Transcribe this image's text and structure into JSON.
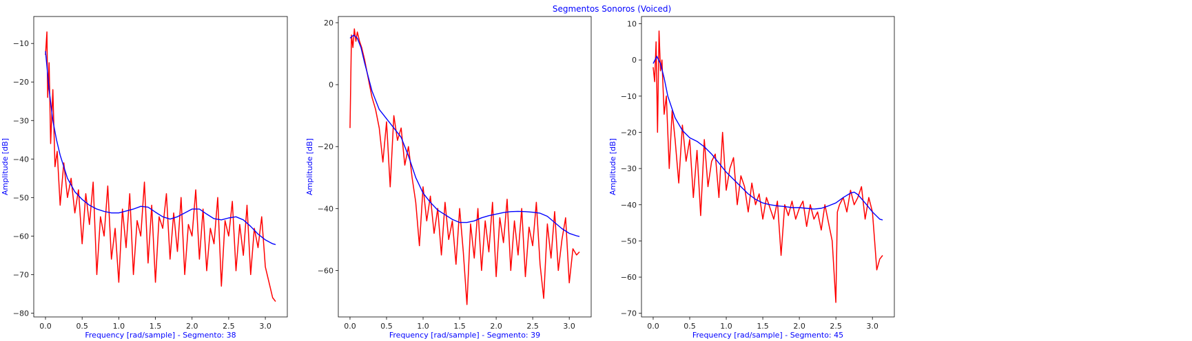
{
  "figure": {
    "suptitle": "Segmentos Sonoros (Voiced)",
    "label_color": "#0000ff",
    "spectrum_color": "#ff0000",
    "envelope_color": "#0000ff"
  },
  "chart_data": [
    {
      "type": "line",
      "xlabel": "Frequency [rad/sample] - Segmento: 38",
      "ylabel": "Amplitude [dB]",
      "xlim": [
        -0.16,
        3.3
      ],
      "ylim": [
        -81,
        -3
      ],
      "xticks": [
        0.0,
        0.5,
        1.0,
        1.5,
        2.0,
        2.5,
        3.0
      ],
      "yticks": [
        -80,
        -70,
        -60,
        -50,
        -40,
        -30,
        -20,
        -10
      ],
      "series": [
        {
          "role": "spectrum",
          "color": "#ff0000",
          "x": [
            0.0,
            0.02,
            0.03,
            0.05,
            0.07,
            0.1,
            0.13,
            0.16,
            0.2,
            0.25,
            0.3,
            0.35,
            0.4,
            0.45,
            0.5,
            0.55,
            0.6,
            0.65,
            0.7,
            0.75,
            0.8,
            0.85,
            0.9,
            0.95,
            1.0,
            1.05,
            1.1,
            1.15,
            1.2,
            1.25,
            1.3,
            1.35,
            1.4,
            1.45,
            1.5,
            1.55,
            1.6,
            1.65,
            1.7,
            1.75,
            1.8,
            1.85,
            1.9,
            1.95,
            2.0,
            2.05,
            2.1,
            2.15,
            2.2,
            2.25,
            2.3,
            2.35,
            2.4,
            2.45,
            2.5,
            2.55,
            2.6,
            2.65,
            2.7,
            2.75,
            2.8,
            2.85,
            2.9,
            2.95,
            3.0,
            3.05,
            3.1,
            3.14
          ],
          "y": [
            -13,
            -7,
            -24,
            -15,
            -36,
            -22,
            -42,
            -38,
            -52,
            -41,
            -50,
            -45,
            -54,
            -48,
            -62,
            -49,
            -57,
            -46,
            -70,
            -55,
            -60,
            -47,
            -66,
            -58,
            -72,
            -53,
            -63,
            -49,
            -70,
            -56,
            -60,
            -46,
            -67,
            -52,
            -72,
            -55,
            -58,
            -49,
            -66,
            -54,
            -64,
            -50,
            -70,
            -57,
            -60,
            -48,
            -66,
            -53,
            -69,
            -58,
            -62,
            -50,
            -73,
            -56,
            -60,
            -51,
            -69,
            -57,
            -65,
            -52,
            -70,
            -58,
            -63,
            -55,
            -68,
            -72,
            -76,
            -77
          ]
        },
        {
          "role": "envelope",
          "color": "#0000ff",
          "x": [
            0.0,
            0.05,
            0.1,
            0.15,
            0.2,
            0.3,
            0.4,
            0.5,
            0.6,
            0.7,
            0.8,
            0.9,
            1.0,
            1.1,
            1.2,
            1.3,
            1.4,
            1.5,
            1.6,
            1.7,
            1.8,
            1.9,
            2.0,
            2.1,
            2.2,
            2.3,
            2.4,
            2.5,
            2.6,
            2.7,
            2.8,
            2.9,
            3.0,
            3.1,
            3.14
          ],
          "y": [
            -12,
            -22,
            -30,
            -35,
            -39,
            -45,
            -48.5,
            -50.5,
            -52,
            -53,
            -53.6,
            -54,
            -54,
            -53.5,
            -53,
            -52.3,
            -52.5,
            -53.8,
            -55,
            -55.6,
            -55,
            -54,
            -53,
            -53,
            -54.3,
            -55.5,
            -55.8,
            -55.3,
            -55,
            -55.8,
            -57.5,
            -59.5,
            -61,
            -62,
            -62.2
          ]
        }
      ]
    },
    {
      "type": "line",
      "xlabel": "Frequency [rad/sample] - Segmento: 39",
      "ylabel": "Amplitude [dB]",
      "xlim": [
        -0.16,
        3.3
      ],
      "ylim": [
        -75,
        22
      ],
      "xticks": [
        0.0,
        0.5,
        1.0,
        1.5,
        2.0,
        2.5,
        3.0
      ],
      "yticks": [
        -60,
        -40,
        -20,
        0,
        20
      ],
      "series": [
        {
          "role": "spectrum",
          "color": "#ff0000",
          "x": [
            0.0,
            0.02,
            0.04,
            0.06,
            0.08,
            0.1,
            0.13,
            0.16,
            0.2,
            0.25,
            0.3,
            0.35,
            0.4,
            0.45,
            0.5,
            0.55,
            0.6,
            0.65,
            0.7,
            0.75,
            0.8,
            0.85,
            0.9,
            0.95,
            1.0,
            1.05,
            1.1,
            1.15,
            1.2,
            1.25,
            1.3,
            1.35,
            1.4,
            1.45,
            1.5,
            1.55,
            1.6,
            1.65,
            1.7,
            1.75,
            1.8,
            1.85,
            1.9,
            1.95,
            2.0,
            2.05,
            2.1,
            2.15,
            2.2,
            2.25,
            2.3,
            2.35,
            2.4,
            2.45,
            2.5,
            2.55,
            2.6,
            2.65,
            2.7,
            2.75,
            2.8,
            2.85,
            2.9,
            2.95,
            3.0,
            3.05,
            3.1,
            3.14
          ],
          "y": [
            -14,
            16,
            12,
            18,
            14,
            17,
            14,
            12,
            8,
            2,
            -4,
            -8,
            -14,
            -25,
            -12,
            -33,
            -10,
            -18,
            -14,
            -26,
            -20,
            -30,
            -38,
            -52,
            -33,
            -44,
            -36,
            -48,
            -40,
            -55,
            -38,
            -50,
            -44,
            -58,
            -40,
            -54,
            -71,
            -45,
            -56,
            -40,
            -60,
            -44,
            -54,
            -38,
            -62,
            -43,
            -51,
            -37,
            -60,
            -44,
            -55,
            -40,
            -62,
            -46,
            -52,
            -38,
            -58,
            -69,
            -45,
            -56,
            -41,
            -60,
            -50,
            -43,
            -64,
            -53,
            -55,
            -54
          ]
        },
        {
          "role": "envelope",
          "color": "#0000ff",
          "x": [
            0.0,
            0.05,
            0.1,
            0.15,
            0.2,
            0.3,
            0.4,
            0.5,
            0.6,
            0.7,
            0.8,
            0.9,
            1.0,
            1.1,
            1.2,
            1.3,
            1.4,
            1.5,
            1.6,
            1.7,
            1.8,
            1.9,
            2.0,
            2.1,
            2.2,
            2.3,
            2.4,
            2.5,
            2.6,
            2.7,
            2.8,
            2.9,
            3.0,
            3.1,
            3.14
          ],
          "y": [
            15,
            16,
            15,
            12,
            7,
            -2,
            -8,
            -11,
            -14,
            -17,
            -23,
            -30,
            -35,
            -38,
            -40.5,
            -42,
            -43.5,
            -44.5,
            -44.5,
            -44,
            -43,
            -42.3,
            -41.8,
            -41.3,
            -41,
            -40.9,
            -41,
            -41.2,
            -41.5,
            -42.5,
            -44.5,
            -46.5,
            -48,
            -48.8,
            -49
          ]
        }
      ]
    },
    {
      "type": "line",
      "xlabel": "Frequency [rad/sample] - Segmento: 45",
      "ylabel": "Amplitude [dB]",
      "xlim": [
        -0.16,
        3.3
      ],
      "ylim": [
        -71,
        12
      ],
      "xticks": [
        0.0,
        0.5,
        1.0,
        1.5,
        2.0,
        2.5,
        3.0
      ],
      "yticks": [
        -70,
        -60,
        -50,
        -40,
        -30,
        -20,
        -10,
        0,
        10
      ],
      "series": [
        {
          "role": "spectrum",
          "color": "#ff0000",
          "x": [
            0.0,
            0.02,
            0.04,
            0.06,
            0.08,
            0.1,
            0.12,
            0.15,
            0.18,
            0.22,
            0.26,
            0.3,
            0.35,
            0.4,
            0.45,
            0.5,
            0.55,
            0.6,
            0.65,
            0.7,
            0.75,
            0.8,
            0.85,
            0.9,
            0.95,
            1.0,
            1.05,
            1.1,
            1.15,
            1.2,
            1.25,
            1.3,
            1.35,
            1.4,
            1.45,
            1.5,
            1.55,
            1.6,
            1.65,
            1.7,
            1.75,
            1.8,
            1.85,
            1.9,
            1.95,
            2.0,
            2.05,
            2.1,
            2.15,
            2.2,
            2.25,
            2.3,
            2.35,
            2.4,
            2.45,
            2.5,
            2.52,
            2.55,
            2.6,
            2.65,
            2.7,
            2.75,
            2.8,
            2.85,
            2.9,
            2.95,
            3.0,
            3.03,
            3.06,
            3.1,
            3.14
          ],
          "y": [
            -2,
            -6,
            5,
            -20,
            8,
            -3,
            0,
            -15,
            -10,
            -30,
            -14,
            -22,
            -34,
            -18,
            -28,
            -22,
            -38,
            -25,
            -43,
            -22,
            -35,
            -28,
            -26,
            -38,
            -20,
            -36,
            -30,
            -27,
            -40,
            -32,
            -35,
            -42,
            -34,
            -40,
            -37,
            -44,
            -38,
            -41,
            -44,
            -39,
            -54,
            -40,
            -43,
            -39,
            -44,
            -41,
            -39,
            -46,
            -40,
            -44,
            -42,
            -47,
            -40,
            -45,
            -50,
            -67,
            -42,
            -40,
            -38,
            -42,
            -36,
            -40,
            -38,
            -35,
            -44,
            -38,
            -42,
            -50,
            -58,
            -55,
            -54
          ]
        },
        {
          "role": "envelope",
          "color": "#0000ff",
          "x": [
            0.0,
            0.05,
            0.1,
            0.15,
            0.2,
            0.3,
            0.4,
            0.5,
            0.6,
            0.7,
            0.8,
            0.9,
            1.0,
            1.1,
            1.2,
            1.3,
            1.4,
            1.5,
            1.6,
            1.7,
            1.8,
            1.9,
            2.0,
            2.1,
            2.2,
            2.3,
            2.4,
            2.5,
            2.6,
            2.7,
            2.75,
            2.8,
            2.9,
            3.0,
            3.1,
            3.14
          ],
          "y": [
            -1,
            1,
            -1,
            -5,
            -10,
            -16,
            -19.5,
            -21.5,
            -22.5,
            -24,
            -26,
            -28.5,
            -31,
            -33,
            -35,
            -37,
            -38.5,
            -39.5,
            -40,
            -40.3,
            -40.5,
            -40.8,
            -40.8,
            -41,
            -41.2,
            -41,
            -40.3,
            -39.5,
            -38,
            -36.8,
            -36.5,
            -37.2,
            -39.5,
            -42,
            -44,
            -44.2
          ]
        }
      ]
    }
  ]
}
